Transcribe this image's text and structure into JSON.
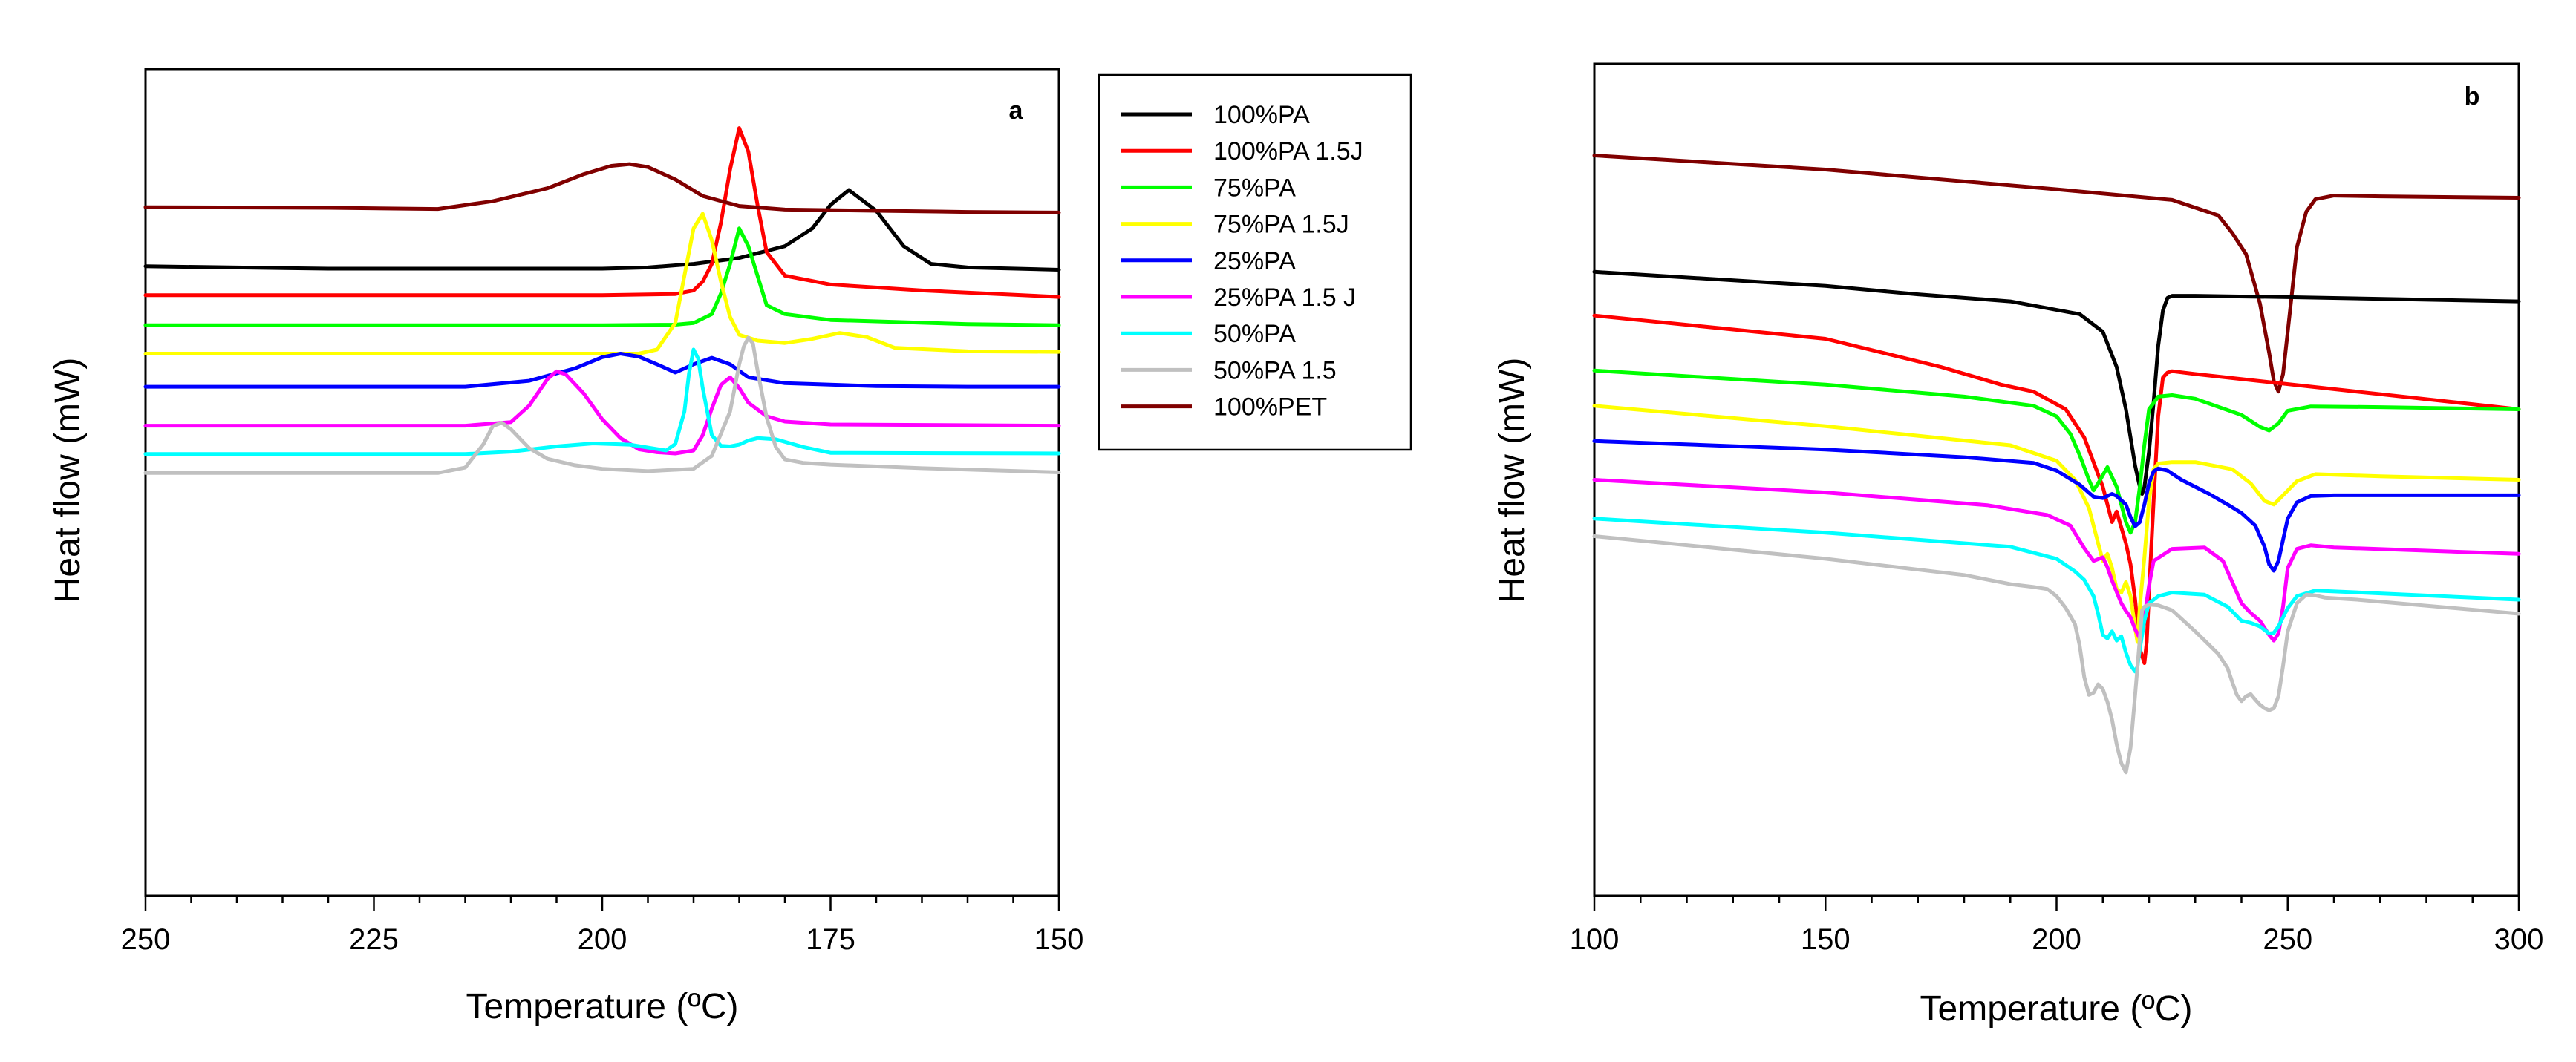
{
  "chart_data": [
    {
      "type": "line",
      "panel_label": "a",
      "xlabel": "Temperature (ºC)",
      "ylabel": "Heat flow (mW)",
      "xlim": [
        250,
        150
      ],
      "x_reversed": true,
      "y_ticks_shown": false,
      "x_ticks": [
        250,
        225,
        200,
        175,
        150
      ],
      "x_tick_labels": [
        "250",
        "225",
        "200",
        "175",
        "150"
      ],
      "legend": {
        "position": "outside-right",
        "entries": [
          {
            "label": "100%PA",
            "color": "#000000"
          },
          {
            "label": "100%PA 1.5J",
            "color": "#ff0000"
          },
          {
            "label": "75%PA",
            "color": "#00ff00"
          },
          {
            "label": "75%PA 1.5J",
            "color": "#ffff00"
          },
          {
            "label": "25%PA",
            "color": "#0000ff"
          },
          {
            "label": "25%PA 1.5 J",
            "color": "#ff00ff"
          },
          {
            "label": "50%PA",
            "color": "#00ffff"
          },
          {
            "label": "50%PA 1.5",
            "color": "#c0c0c0"
          },
          {
            "label": "100%PET",
            "color": "#800000"
          }
        ]
      },
      "series": [
        {
          "name": "100%PA",
          "color": "#000000",
          "x": [
            250,
            230,
            200,
            195,
            190,
            185,
            180,
            177,
            175,
            173,
            170,
            167,
            164,
            160,
            150
          ],
          "y": [
            71.6,
            71.2,
            71.2,
            71.4,
            72,
            73,
            75,
            78,
            82,
            84.5,
            81,
            75,
            72,
            71.4,
            71
          ]
        },
        {
          "name": "100%PA 1.5J",
          "color": "#ff0000",
          "x": [
            250,
            200,
            192,
            190,
            189,
            188,
            187,
            186,
            185,
            184,
            183,
            182,
            180,
            175,
            165,
            150
          ],
          "y": [
            66.7,
            66.7,
            66.9,
            67.5,
            69,
            72,
            79,
            88,
            95,
            91,
            82,
            74,
            70,
            68.5,
            67.5,
            66.4
          ]
        },
        {
          "name": "75%PA",
          "color": "#00ff00",
          "x": [
            250,
            200,
            192,
            190,
            188,
            187,
            186,
            185,
            184,
            183,
            182,
            180,
            175,
            160,
            150
          ],
          "y": [
            61.6,
            61.6,
            61.7,
            62,
            63.5,
            67,
            72,
            78,
            75,
            70,
            65,
            63.5,
            62.5,
            61.8,
            61.6
          ]
        },
        {
          "name": "75%PA 1.5J",
          "color": "#ffff00",
          "x": [
            250,
            196,
            194,
            192,
            191,
            190,
            189,
            188,
            187,
            186,
            185,
            183,
            180,
            177,
            174,
            171,
            168,
            160,
            150
          ],
          "y": [
            56.8,
            56.8,
            57.5,
            62,
            70,
            78,
            80.5,
            76,
            69,
            63,
            60,
            59,
            58.6,
            59.3,
            60.3,
            59.6,
            57.8,
            57.2,
            57.1
          ]
        },
        {
          "name": "25%PA",
          "color": "#0000ff",
          "x": [
            250,
            215,
            208,
            203,
            200,
            198,
            196,
            194,
            192,
            190,
            188,
            186,
            184,
            180,
            170,
            160,
            150
          ],
          "y": [
            51.2,
            51.2,
            52.2,
            54.3,
            56.2,
            56.8,
            56.3,
            55,
            53.6,
            55,
            56.1,
            55,
            52.8,
            51.8,
            51.3,
            51.2,
            51.2
          ]
        },
        {
          "name": "25%PA 1.5 J",
          "color": "#ff00ff",
          "x": [
            250,
            215,
            210,
            208,
            206,
            205,
            204,
            202,
            200,
            198,
            196,
            194,
            192,
            190,
            189,
            188,
            187,
            186,
            185,
            184,
            182,
            180,
            175,
            150
          ],
          "y": [
            44.6,
            44.6,
            45.2,
            48,
            52.5,
            53.8,
            53.3,
            50,
            45.7,
            42.5,
            40.6,
            40.1,
            39.9,
            40.4,
            43,
            47.5,
            51.5,
            52.8,
            51,
            48.5,
            46.2,
            45.3,
            44.8,
            44.6
          ]
        },
        {
          "name": "50%PA",
          "color": "#00ffff",
          "x": [
            250,
            215,
            210,
            205,
            201,
            197,
            193,
            192,
            191,
            190.5,
            190,
            189.5,
            189,
            188,
            187,
            186,
            185,
            184,
            183,
            181,
            178,
            175,
            150
          ],
          "y": [
            39.8,
            39.8,
            40.2,
            41.1,
            41.6,
            41.4,
            40.4,
            41.5,
            47,
            53.5,
            57.5,
            56,
            51,
            43,
            41.2,
            41.1,
            41.4,
            42.1,
            42.5,
            42.3,
            41,
            40,
            39.9
          ]
        },
        {
          "name": "50%PA 1.5",
          "color": "#c0c0c0",
          "x": [
            250,
            218,
            215,
            213,
            212,
            211,
            210,
            208,
            206,
            203,
            200,
            195,
            190,
            188,
            186,
            185,
            184.5,
            184,
            183.5,
            183,
            182,
            181,
            180,
            178,
            175,
            165,
            150
          ],
          "y": [
            36.6,
            36.6,
            37.5,
            41.5,
            44.5,
            45.1,
            44,
            40.8,
            39,
            37.9,
            37.3,
            36.9,
            37.3,
            39.5,
            47,
            55,
            58,
            59.5,
            58.5,
            54,
            46,
            41,
            38.9,
            38.3,
            38,
            37.4,
            36.7
          ]
        },
        {
          "name": "100%PET",
          "color": "#800000",
          "x": [
            250,
            230,
            218,
            212,
            206,
            202,
            199,
            197,
            195,
            192,
            189,
            185,
            180,
            170,
            160,
            150
          ],
          "y": [
            81.6,
            81.5,
            81.3,
            82.6,
            84.8,
            87.2,
            88.6,
            88.9,
            88.4,
            86.3,
            83.5,
            81.8,
            81.2,
            81,
            80.8,
            80.7
          ]
        }
      ]
    },
    {
      "type": "line",
      "panel_label": "b",
      "xlabel": "Temperature (ºC)",
      "ylabel": "Heat flow (mW)",
      "xlim": [
        100,
        300
      ],
      "x_reversed": false,
      "y_ticks_shown": false,
      "x_ticks": [
        100,
        150,
        200,
        250,
        300
      ],
      "x_tick_labels": [
        "100",
        "150",
        "200",
        "250",
        "300"
      ],
      "series": [
        {
          "name": "100%PET",
          "color": "#800000",
          "x": [
            100,
            150,
            200,
            225,
            235,
            238,
            241,
            244,
            246,
            247,
            248,
            249,
            250,
            252,
            254,
            256,
            260,
            270,
            300
          ],
          "y": [
            87,
            85,
            82.2,
            80.7,
            78.5,
            76,
            73,
            66,
            59,
            55,
            53.5,
            56,
            62,
            74,
            79,
            80.8,
            81.3,
            81.2,
            81
          ]
        },
        {
          "name": "100%PA",
          "color": "#000000",
          "x": [
            100,
            150,
            170,
            190,
            205,
            210,
            213,
            215,
            216,
            217,
            218,
            218.5,
            219,
            220,
            221,
            222,
            223,
            224,
            225,
            230,
            250,
            300
          ],
          "y": [
            70.5,
            68.5,
            67.3,
            66.3,
            64.5,
            62,
            57,
            51,
            47,
            43,
            40,
            39,
            40,
            45,
            52,
            60,
            65,
            66.8,
            67.1,
            67.1,
            66.9,
            66.3
          ]
        },
        {
          "name": "100%PA 1.5J",
          "color": "#ff0000",
          "x": [
            100,
            150,
            175,
            188,
            195,
            202,
            206,
            210,
            212,
            213,
            215,
            216,
            217,
            218,
            219,
            219.5,
            220,
            221,
            222,
            223,
            224,
            225,
            230,
            300
          ],
          "y": [
            64.3,
            61,
            57,
            54.5,
            53.5,
            51,
            47,
            40,
            35,
            36.5,
            32,
            29,
            24,
            17,
            15,
            18,
            25,
            38,
            50,
            55.5,
            56.2,
            56.4,
            56,
            51
          ]
        },
        {
          "name": "75%PA",
          "color": "#00ff00",
          "x": [
            100,
            150,
            180,
            195,
            200,
            203,
            205,
            207,
            208,
            209,
            211,
            213,
            215,
            216,
            217,
            218,
            219,
            220,
            222,
            225,
            230,
            240,
            244,
            246,
            248,
            250,
            255,
            270,
            300
          ],
          "y": [
            56.5,
            54.5,
            52.8,
            51.5,
            50,
            47.5,
            44.5,
            41,
            39.5,
            40.5,
            42.8,
            40,
            35,
            33.5,
            35,
            40,
            46,
            51,
            52.8,
            53,
            52.5,
            50.2,
            48.5,
            48,
            49,
            50.8,
            51.4,
            51.3,
            51
          ]
        },
        {
          "name": "75%PA 1.5J",
          "color": "#ffff00",
          "x": [
            100,
            150,
            190,
            200,
            204,
            207,
            209,
            210,
            211,
            212,
            213,
            214,
            215,
            216,
            217,
            217.5,
            218,
            219,
            220,
            221,
            222,
            225,
            230,
            238,
            242,
            245,
            247,
            249,
            252,
            256,
            270,
            300
          ],
          "y": [
            51.5,
            48.6,
            45.9,
            43.7,
            41,
            37,
            32,
            29.5,
            30.5,
            28.5,
            25.5,
            25,
            26.5,
            24.5,
            20,
            18,
            23,
            30,
            38,
            42.5,
            43.3,
            43.5,
            43.5,
            42.5,
            40.5,
            38,
            37.5,
            38.8,
            40.8,
            41.8,
            41.5,
            41
          ]
        },
        {
          "name": "25%PA",
          "color": "#0000ff",
          "x": [
            100,
            150,
            180,
            195,
            200,
            205,
            208,
            210,
            212,
            213,
            215,
            216,
            217,
            218,
            219,
            220,
            221,
            222,
            224,
            227,
            233,
            237,
            240,
            243,
            245,
            246,
            247,
            248,
            249,
            250,
            252,
            255,
            260,
            300
          ],
          "y": [
            46.5,
            45.3,
            44.2,
            43.4,
            42.3,
            40.3,
            38.6,
            38.4,
            39,
            38.7,
            37.5,
            35.7,
            34.4,
            35,
            37.5,
            40.5,
            42.2,
            42.6,
            42.3,
            41,
            39,
            37.5,
            36.3,
            34.5,
            31.5,
            29,
            28.1,
            29.5,
            32.5,
            35.5,
            37.8,
            38.7,
            38.8,
            38.8
          ]
        },
        {
          "name": "25%PA 1.5 J",
          "color": "#ff00ff",
          "x": [
            100,
            150,
            185,
            198,
            203,
            206,
            208,
            210,
            211,
            212,
            213,
            214,
            215,
            216,
            217,
            218,
            219,
            220,
            221,
            225,
            232,
            236,
            238,
            240,
            242,
            244,
            246,
            247,
            248,
            249,
            250,
            252,
            255,
            260,
            300
          ],
          "y": [
            41,
            39.2,
            37.4,
            36,
            34.5,
            31.3,
            29.5,
            30,
            28.6,
            26.7,
            25.1,
            23.5,
            22.4,
            21.5,
            19.8,
            18.5,
            21.5,
            26,
            29.5,
            31.2,
            31.4,
            29.5,
            26.5,
            23.5,
            22.1,
            21,
            19,
            18.2,
            19.2,
            23,
            28.5,
            31.2,
            31.7,
            31.4,
            30.5
          ]
        },
        {
          "name": "50%PA",
          "color": "#00ffff",
          "x": [
            100,
            150,
            190,
            200,
            204,
            206,
            208,
            209,
            210,
            211,
            212,
            213,
            214,
            215,
            216,
            217,
            217.5,
            218,
            219,
            220,
            222,
            225,
            232,
            237,
            240,
            242,
            244,
            246,
            247,
            248,
            250,
            252,
            256,
            300
          ],
          "y": [
            35.5,
            33.5,
            31.5,
            29.8,
            28,
            26.8,
            24.5,
            22,
            19,
            18.5,
            19.5,
            18.2,
            18.8,
            16.5,
            14.7,
            13.8,
            14.5,
            17,
            21,
            23.5,
            24.5,
            25,
            24.7,
            23,
            21,
            20.7,
            20.2,
            19.2,
            19.3,
            20.2,
            22.8,
            24.5,
            25.3,
            24
          ]
        },
        {
          "name": "50%PA 1.5",
          "color": "#c0c0c0",
          "x": [
            100,
            150,
            180,
            190,
            195,
            198,
            200,
            202,
            204,
            205,
            206,
            207,
            208,
            209,
            210,
            211,
            212,
            213,
            214,
            215,
            216,
            217,
            218,
            218.5,
            219,
            220,
            222,
            225,
            230,
            235,
            237,
            238,
            239,
            240,
            241,
            242,
            243,
            244,
            245,
            246,
            247,
            248,
            249,
            250,
            252,
            254,
            256,
            258,
            265,
            300
          ],
          "y": [
            33,
            29.8,
            27.5,
            26.2,
            25.8,
            25.5,
            24.5,
            22.8,
            20.5,
            17.5,
            13,
            10.5,
            10.8,
            12,
            11.3,
            9.5,
            7,
            3.5,
            0.8,
            -0.5,
            3,
            10.5,
            18.5,
            22.5,
            23,
            23.3,
            23.2,
            22.5,
            19.5,
            16.3,
            14.3,
            12.3,
            10.5,
            9.6,
            10.3,
            10.6,
            9.8,
            9.1,
            8.6,
            8.3,
            8.6,
            10.3,
            14.6,
            19.5,
            23.5,
            24.7,
            24.6,
            24.3,
            24,
            22
          ]
        }
      ]
    }
  ]
}
